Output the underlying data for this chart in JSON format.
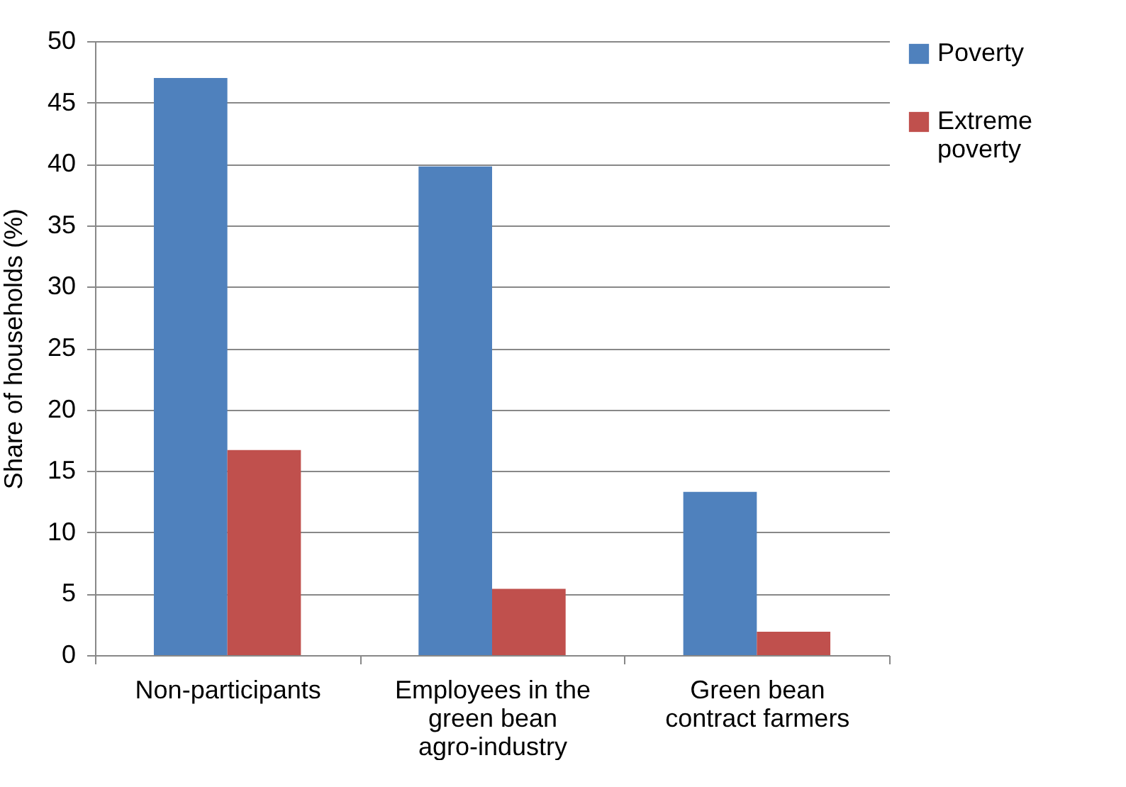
{
  "chart_data": {
    "type": "bar",
    "ylabel": "Share of households (%)",
    "categories": [
      "Non-participants",
      "Employees in the green bean agro-industry",
      "Green bean contract farmers"
    ],
    "series": [
      {
        "name": "Poverty",
        "color": "#4f81bd",
        "values": [
          47,
          39.8,
          13.3
        ]
      },
      {
        "name": "Extreme poverty",
        "color": "#c0504d",
        "values": [
          16.7,
          5.4,
          1.9
        ]
      }
    ],
    "ylim": [
      0,
      50
    ],
    "yticks": [
      0,
      5,
      10,
      15,
      20,
      25,
      30,
      35,
      40,
      45,
      50
    ],
    "grid": "y",
    "legend": "right"
  }
}
